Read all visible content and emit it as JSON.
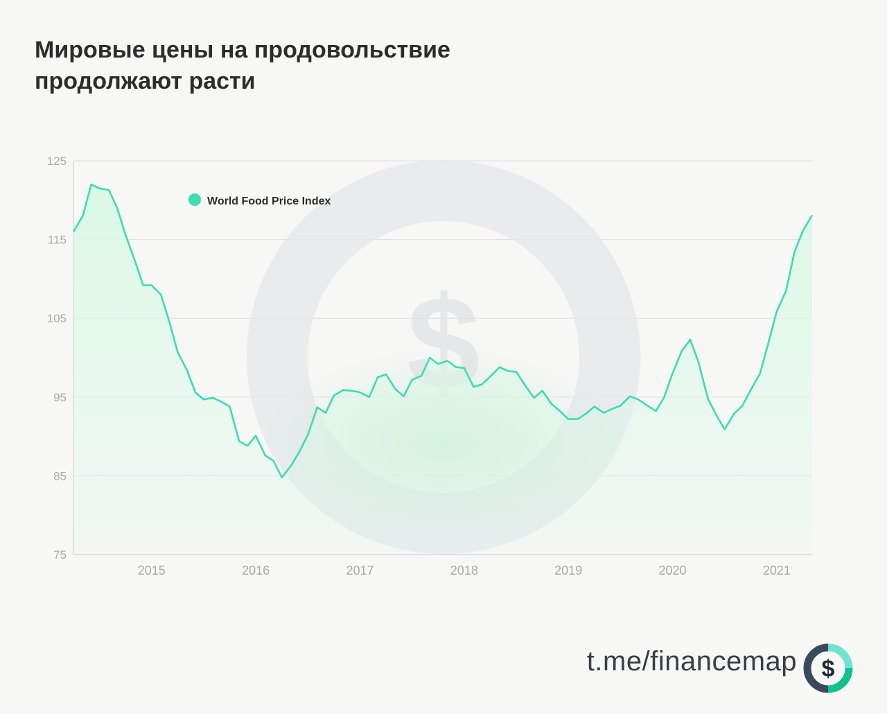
{
  "header": {
    "title_line1": "Мировые цены на продовольствие",
    "title_line2": "продолжают расти"
  },
  "footer": {
    "link": "t.me/financemap"
  },
  "logo": {
    "icon": "dollar-ring-logo-icon",
    "symbol": "$"
  },
  "colors": {
    "line": "#3ddbb3",
    "fill": "#d9f8e6",
    "grid": "#dedede",
    "tick_text": "#a9a9a9",
    "title": "#2c2c2c",
    "logo_dark": "#3a4a5a",
    "logo_light": "#6fe3cf",
    "logo_green": "#12c28a"
  },
  "chart_data": {
    "type": "area",
    "title": "",
    "xlabel": "",
    "ylabel": "",
    "ylim": [
      75,
      125
    ],
    "yticks": [
      75,
      85,
      95,
      105,
      115,
      125
    ],
    "xlim": [
      2014.08,
      2021.17
    ],
    "xticks": [
      {
        "x": 2014.83,
        "label": "2015"
      },
      {
        "x": 2015.83,
        "label": "2016"
      },
      {
        "x": 2016.83,
        "label": "2017"
      },
      {
        "x": 2017.83,
        "label": "2018"
      },
      {
        "x": 2018.83,
        "label": "2019"
      },
      {
        "x": 2019.83,
        "label": "2020"
      },
      {
        "x": 2020.83,
        "label": "2021"
      }
    ],
    "grid": true,
    "legend_position": "top-left",
    "series": [
      {
        "name": "World Food Price Index",
        "x": [
          2014.08,
          2014.17,
          2014.25,
          2014.33,
          2014.42,
          2014.5,
          2014.58,
          2014.67,
          2014.75,
          2014.83,
          2014.92,
          2015.0,
          2015.08,
          2015.17,
          2015.25,
          2015.33,
          2015.42,
          2015.5,
          2015.58,
          2015.67,
          2015.75,
          2015.83,
          2015.92,
          2016.0,
          2016.08,
          2016.17,
          2016.25,
          2016.33,
          2016.42,
          2016.5,
          2016.58,
          2016.67,
          2016.75,
          2016.83,
          2016.92,
          2017.0,
          2017.08,
          2017.17,
          2017.25,
          2017.33,
          2017.42,
          2017.5,
          2017.58,
          2017.67,
          2017.75,
          2017.83,
          2017.92,
          2018.0,
          2018.08,
          2018.17,
          2018.25,
          2018.33,
          2018.42,
          2018.5,
          2018.58,
          2018.67,
          2018.75,
          2018.83,
          2018.92,
          2019.0,
          2019.08,
          2019.17,
          2019.25,
          2019.33,
          2019.42,
          2019.5,
          2019.58,
          2019.67,
          2019.75,
          2019.83,
          2019.92,
          2020.0,
          2020.08,
          2020.17,
          2020.25,
          2020.33,
          2020.42,
          2020.5,
          2020.58,
          2020.67,
          2020.75,
          2020.83,
          2020.92,
          2021.0,
          2021.08,
          2021.17
        ],
        "values": [
          116,
          118,
          122,
          121.5,
          121.3,
          119,
          115.6,
          112.3,
          109.2,
          109.2,
          108,
          104.6,
          100.7,
          98.4,
          95.6,
          94.7,
          94.9,
          94.4,
          93.8,
          89.4,
          88.8,
          90.1,
          87.6,
          86.9,
          84.8,
          86.3,
          88.1,
          90.2,
          93.7,
          93.0,
          95.2,
          95.9,
          95.8,
          95.6,
          95.0,
          97.5,
          97.9,
          96.0,
          95.1,
          97.2,
          97.7,
          100.0,
          99.2,
          99.6,
          98.8,
          98.7,
          96.3,
          96.6,
          97.6,
          98.8,
          98.3,
          98.2,
          96.4,
          94.9,
          95.8,
          94.1,
          93.2,
          92.2,
          92.2,
          92.9,
          93.8,
          93.0,
          93.5,
          93.9,
          95.1,
          94.7,
          94.0,
          93.2,
          95.0,
          98.0,
          100.9,
          102.3,
          99.4,
          94.8,
          92.7,
          90.9,
          92.9,
          93.9,
          95.9,
          98.0,
          101.9,
          105.9,
          108.5,
          113.4,
          116.1,
          118.1
        ]
      }
    ]
  }
}
